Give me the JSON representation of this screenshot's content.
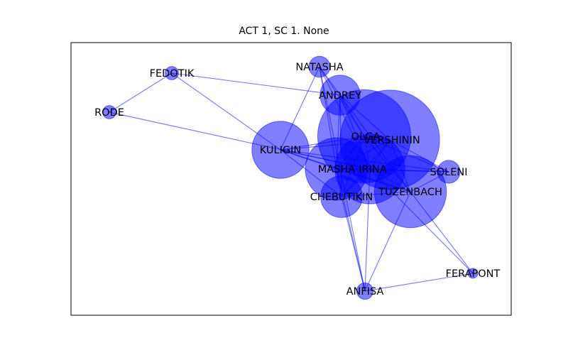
{
  "title": "ACT 1, SC 1. None",
  "style": {
    "node_color": "#0000ff",
    "node_opacity": 0.5,
    "edge_color": "#0000ff",
    "edge_opacity": 0.5
  },
  "nodes": [
    {
      "id": "FEDOTIK",
      "label": "FEDOTIK",
      "weight": 1
    },
    {
      "id": "RODE",
      "label": "RODE",
      "weight": 1
    },
    {
      "id": "NATASHA",
      "label": "NATASHA",
      "weight": 4
    },
    {
      "id": "ANDREY",
      "label": "ANDREY",
      "weight": 20
    },
    {
      "id": "OLGA",
      "label": "OLGA",
      "weight": 130
    },
    {
      "id": "VERSHININ",
      "label": "VERSHININ",
      "weight": 150
    },
    {
      "id": "KULIGIN",
      "label": "KULIGIN",
      "weight": 45
    },
    {
      "id": "MASHA",
      "label": "MASHA",
      "weight": 55
    },
    {
      "id": "IRINA",
      "label": "IRINA",
      "weight": 70
    },
    {
      "id": "SOLENI",
      "label": "SOLENI",
      "weight": 5
    },
    {
      "id": "TUZENBACH",
      "label": "TUZENBACH",
      "weight": 75
    },
    {
      "id": "CHEBUTIKIN",
      "label": "CHEBUTIKIN",
      "weight": 22
    },
    {
      "id": "FERAPONT",
      "label": "FERAPONT",
      "weight": 0.3
    },
    {
      "id": "ANFISA",
      "label": "ANFISA",
      "weight": 2
    }
  ],
  "edges": [
    [
      "FEDOTIK",
      "RODE"
    ],
    [
      "FEDOTIK",
      "ANDREY"
    ],
    [
      "FEDOTIK",
      "KULIGIN"
    ],
    [
      "RODE",
      "IRINA"
    ],
    [
      "NATASHA",
      "ANDREY"
    ],
    [
      "NATASHA",
      "KULIGIN"
    ],
    [
      "NATASHA",
      "OLGA"
    ],
    [
      "NATASHA",
      "IRINA"
    ],
    [
      "NATASHA",
      "MASHA"
    ],
    [
      "NATASHA",
      "ANFISA"
    ],
    [
      "ANDREY",
      "OLGA"
    ],
    [
      "ANDREY",
      "VERSHININ"
    ],
    [
      "ANDREY",
      "IRINA"
    ],
    [
      "ANDREY",
      "MASHA"
    ],
    [
      "ANDREY",
      "TUZENBACH"
    ],
    [
      "ANDREY",
      "CHEBUTIKIN"
    ],
    [
      "KULIGIN",
      "OLGA"
    ],
    [
      "KULIGIN",
      "VERSHININ"
    ],
    [
      "KULIGIN",
      "MASHA"
    ],
    [
      "KULIGIN",
      "IRINA"
    ],
    [
      "KULIGIN",
      "TUZENBACH"
    ],
    [
      "KULIGIN",
      "CHEBUTIKIN"
    ],
    [
      "KULIGIN",
      "SOLENI"
    ],
    [
      "OLGA",
      "VERSHININ"
    ],
    [
      "OLGA",
      "MASHA"
    ],
    [
      "OLGA",
      "IRINA"
    ],
    [
      "OLGA",
      "TUZENBACH"
    ],
    [
      "OLGA",
      "CHEBUTIKIN"
    ],
    [
      "OLGA",
      "SOLENI"
    ],
    [
      "VERSHININ",
      "MASHA"
    ],
    [
      "VERSHININ",
      "IRINA"
    ],
    [
      "VERSHININ",
      "TUZENBACH"
    ],
    [
      "VERSHININ",
      "CHEBUTIKIN"
    ],
    [
      "VERSHININ",
      "SOLENI"
    ],
    [
      "MASHA",
      "IRINA"
    ],
    [
      "MASHA",
      "TUZENBACH"
    ],
    [
      "MASHA",
      "CHEBUTIKIN"
    ],
    [
      "MASHA",
      "SOLENI"
    ],
    [
      "MASHA",
      "ANFISA"
    ],
    [
      "IRINA",
      "TUZENBACH"
    ],
    [
      "IRINA",
      "CHEBUTIKIN"
    ],
    [
      "IRINA",
      "SOLENI"
    ],
    [
      "IRINA",
      "ANFISA"
    ],
    [
      "IRINA",
      "FERAPONT"
    ],
    [
      "TUZENBACH",
      "CHEBUTIKIN"
    ],
    [
      "TUZENBACH",
      "SOLENI"
    ],
    [
      "TUZENBACH",
      "ANFISA"
    ],
    [
      "TUZENBACH",
      "FERAPONT"
    ],
    [
      "CHEBUTIKIN",
      "ANFISA"
    ],
    [
      "ANFISA",
      "FERAPONT"
    ]
  ]
}
